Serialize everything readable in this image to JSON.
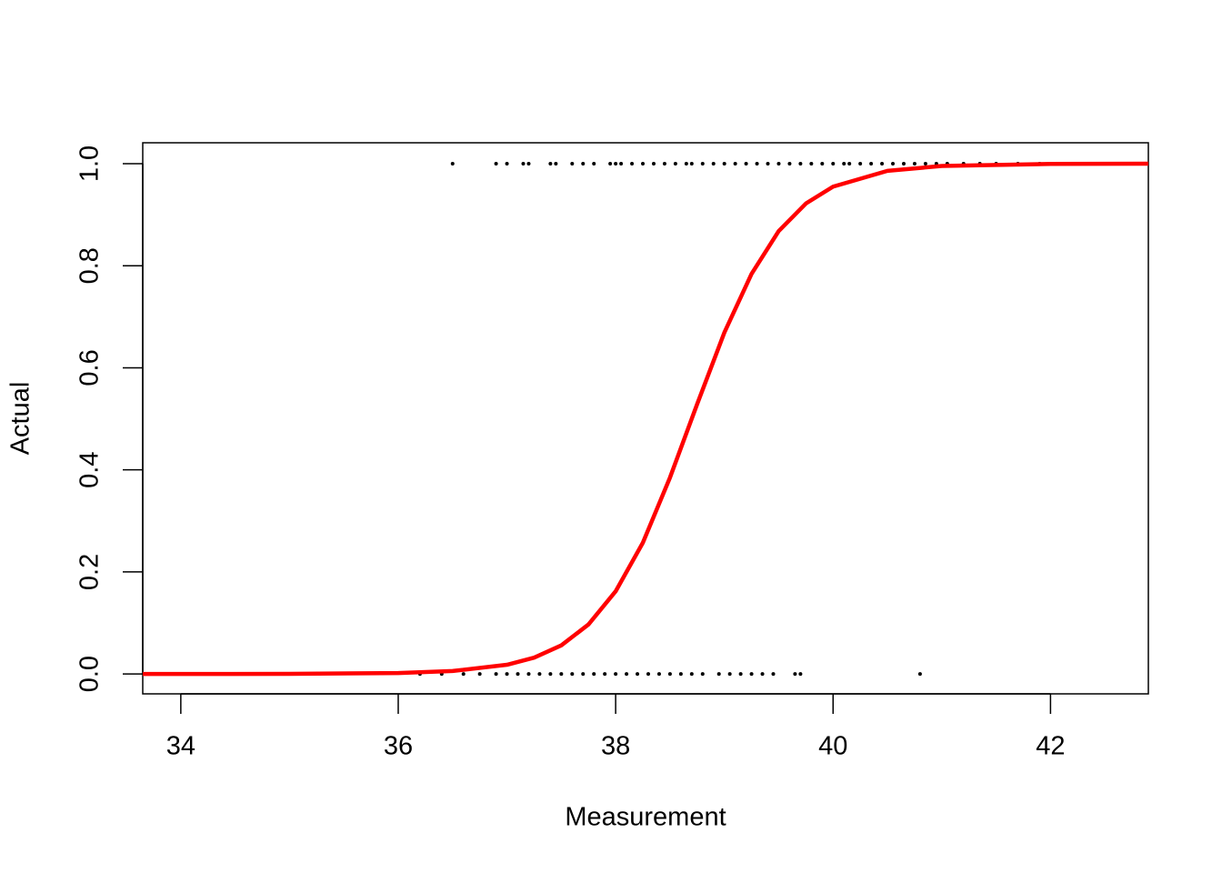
{
  "chart_data": {
    "type": "scatter",
    "x_label": "Measurement",
    "y_label": "Actual",
    "xlim": [
      33.65,
      42.9
    ],
    "ylim": [
      -0.039,
      1.041
    ],
    "xticks": [
      34,
      36,
      38,
      40,
      42
    ],
    "yticks": [
      {
        "value": 0,
        "label": "0.0"
      },
      0.2,
      0.4,
      0.6,
      0.8,
      {
        "value": 1,
        "label": "1.0"
      }
    ],
    "grid": false,
    "series": [
      {
        "type": "scatter",
        "color": "#000000",
        "x": [
          36.5,
          36.9,
          37.0,
          37.15,
          37.2,
          37.4,
          37.45,
          37.6,
          37.7,
          37.8,
          37.95,
          38.0,
          38.05,
          38.15,
          38.25,
          38.35,
          38.45,
          38.55,
          38.65,
          38.7,
          38.8,
          38.9,
          39.0,
          39.1,
          39.2,
          39.3,
          39.4,
          39.5,
          39.6,
          39.7,
          39.8,
          39.9,
          40.0,
          40.1,
          40.15,
          40.25,
          40.35,
          40.45,
          40.55,
          40.65,
          40.75,
          40.85,
          40.95,
          41.05,
          41.2,
          41.35,
          41.5,
          41.7,
          41.9,
          36.2,
          36.4,
          36.6,
          36.75,
          36.9,
          37.0,
          37.1,
          37.2,
          37.3,
          37.4,
          37.5,
          37.6,
          37.7,
          37.8,
          37.9,
          38.0,
          38.1,
          38.2,
          38.3,
          38.4,
          38.5,
          38.6,
          38.7,
          38.8,
          38.95,
          39.05,
          39.15,
          39.25,
          39.35,
          39.45,
          39.65,
          39.7,
          40.8
        ],
        "values": [
          1,
          1,
          1,
          1,
          1,
          1,
          1,
          1,
          1,
          1,
          1,
          1,
          1,
          1,
          1,
          1,
          1,
          1,
          1,
          1,
          1,
          1,
          1,
          1,
          1,
          1,
          1,
          1,
          1,
          1,
          1,
          1,
          1,
          1,
          1,
          1,
          1,
          1,
          1,
          1,
          1,
          1,
          1,
          1,
          1,
          1,
          1,
          1,
          1,
          0,
          0,
          0,
          0,
          0,
          0,
          0,
          0,
          0,
          0,
          0,
          0,
          0,
          0,
          0,
          0,
          0,
          0,
          0,
          0,
          0,
          0,
          0,
          0,
          0,
          0,
          0,
          0,
          0,
          0,
          0,
          0,
          0
        ]
      },
      {
        "type": "line",
        "color": "#ff0000",
        "x": [
          33.65,
          34,
          35,
          36,
          36.5,
          37,
          37.25,
          37.5,
          37.75,
          38,
          38.25,
          38.5,
          38.75,
          39,
          39.25,
          39.5,
          39.75,
          40,
          40.5,
          41,
          42,
          42.9
        ],
        "values": [
          0.0,
          0.0,
          0.0002,
          0.0018,
          0.0057,
          0.018,
          0.032,
          0.056,
          0.097,
          0.162,
          0.257,
          0.385,
          0.529,
          0.669,
          0.784,
          0.868,
          0.922,
          0.955,
          0.986,
          0.9955,
          0.9996,
          0.9999
        ]
      }
    ]
  }
}
